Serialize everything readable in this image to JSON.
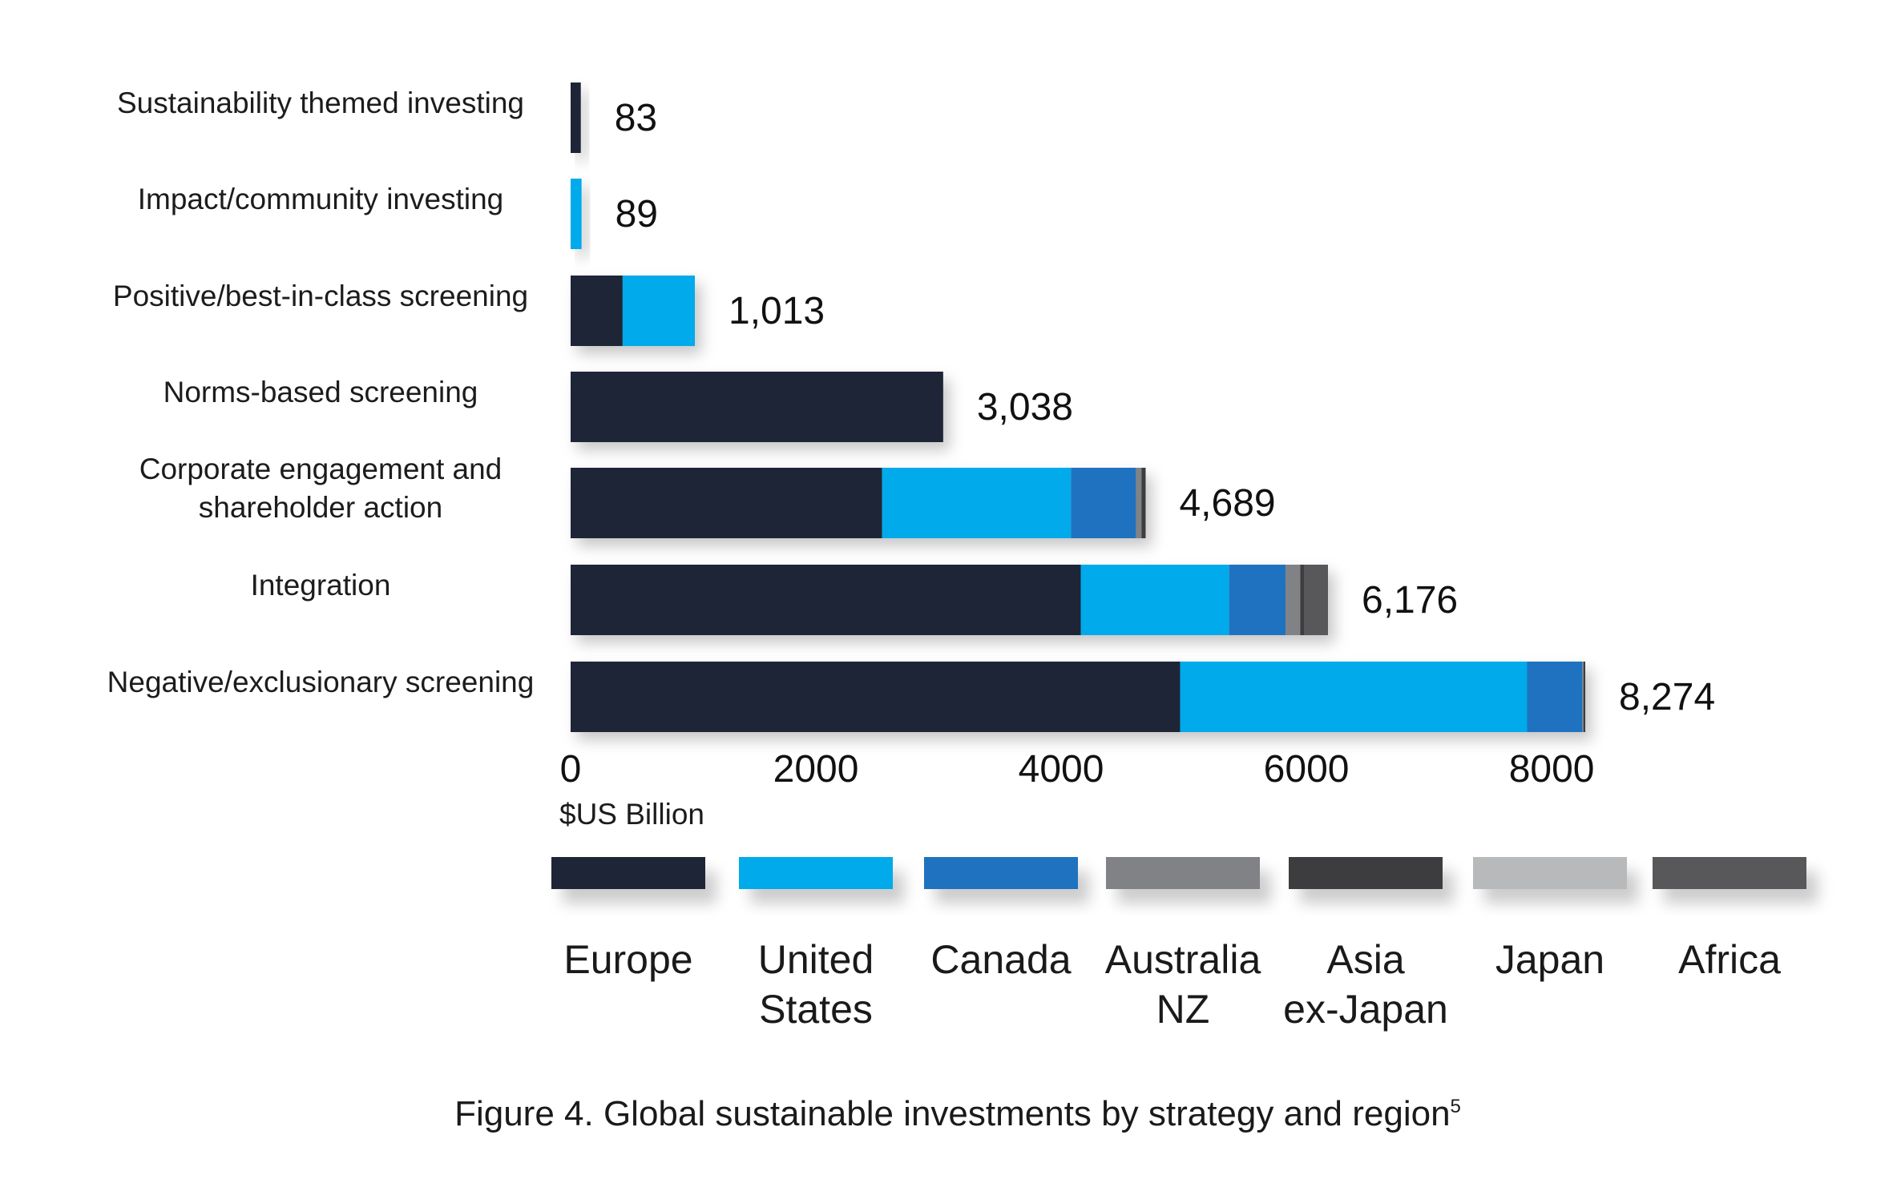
{
  "chart_data": {
    "type": "bar",
    "orientation": "horizontal",
    "stacked": true,
    "categories": [
      [
        "Sustainability themed investing"
      ],
      [
        "Impact/community investing"
      ],
      [
        "Positive/best-in-class screening"
      ],
      [
        "Norms-based screening"
      ],
      [
        "Corporate engagement and",
        "shareholder action"
      ],
      [
        "Integration"
      ],
      [
        "Negative/exclusionary screening"
      ]
    ],
    "series": [
      {
        "name": [
          "Europe"
        ],
        "color": "#1e2537",
        "values": [
          83,
          0,
          424,
          3038,
          2540,
          4160,
          4970
        ]
      },
      {
        "name": [
          "United",
          "States"
        ],
        "color": "#00aaeb",
        "values": [
          0,
          89,
          589,
          0,
          1540,
          1210,
          2830
        ]
      },
      {
        "name": [
          "Canada"
        ],
        "color": "#1f72bf",
        "values": [
          0,
          0,
          0,
          0,
          530,
          460,
          450
        ]
      },
      {
        "name": [
          "Australia",
          "NZ"
        ],
        "color": "#808285",
        "values": [
          0,
          0,
          0,
          0,
          45,
          120,
          10
        ]
      },
      {
        "name": [
          "Asia",
          "ex-Japan"
        ],
        "color": "#3d3d3f",
        "values": [
          0,
          0,
          0,
          0,
          34,
          30,
          14
        ]
      },
      {
        "name": [
          "Japan"
        ],
        "color": "#b8b9bb",
        "values": [
          0,
          0,
          0,
          0,
          0,
          0,
          0
        ]
      },
      {
        "name": [
          "Africa"
        ],
        "color": "#58585a",
        "values": [
          0,
          0,
          0,
          0,
          0,
          196,
          0
        ]
      }
    ],
    "totals": [
      83,
      89,
      1013,
      3038,
      4689,
      6176,
      8274
    ],
    "total_labels": [
      "83",
      "89",
      "1,013",
      "3,038",
      "4,689",
      "6,176",
      "8,274"
    ],
    "x_ticks": [
      0,
      2000,
      4000,
      6000,
      8000
    ],
    "tick_labels": [
      "0",
      "2000",
      "4000",
      "6000",
      "8000"
    ],
    "xlim": [
      0,
      8300
    ],
    "xlabel": "$US Billion",
    "ylabel": "",
    "grid": false,
    "legend_position": "bottom",
    "caption": "Figure 4.  Global sustainable investments by strategy and region",
    "caption_superscript": "5"
  }
}
